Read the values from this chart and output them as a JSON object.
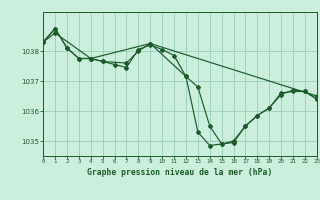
{
  "title": "Graphe pression niveau de la mer (hPa)",
  "bg_color": "#cceedd",
  "grid_color": "#99ccbb",
  "line_color": "#1a5c28",
  "xlim": [
    0,
    23
  ],
  "ylim": [
    1034.5,
    1039.3
  ],
  "yticks": [
    1035,
    1036,
    1037,
    1038
  ],
  "xticks": [
    0,
    1,
    2,
    3,
    4,
    5,
    6,
    7,
    8,
    9,
    10,
    11,
    12,
    13,
    14,
    15,
    16,
    17,
    18,
    19,
    20,
    21,
    22,
    23
  ],
  "series1_x": [
    0,
    1,
    2,
    3,
    4,
    5,
    6,
    7,
    8,
    9,
    10,
    11,
    12,
    13,
    14,
    15,
    16,
    17,
    18,
    19,
    20,
    21,
    22,
    23
  ],
  "series1_y": [
    1038.3,
    1038.75,
    1038.1,
    1037.75,
    1037.75,
    1037.65,
    1037.55,
    1037.45,
    1038.05,
    1038.2,
    1038.05,
    1037.85,
    1037.15,
    1035.3,
    1034.85,
    1034.9,
    1035.0,
    1035.5,
    1035.85,
    1036.1,
    1036.6,
    1036.65,
    1036.65,
    1036.4
  ],
  "series2_x": [
    0,
    1,
    2,
    3,
    4,
    5,
    7,
    8,
    9,
    23
  ],
  "series2_y": [
    1038.3,
    1038.75,
    1038.1,
    1037.75,
    1037.75,
    1037.65,
    1037.6,
    1038.0,
    1038.25,
    1036.5
  ],
  "series3_x": [
    0,
    1,
    4,
    9,
    12,
    13,
    14,
    15,
    16,
    17,
    18,
    19,
    20,
    21,
    22,
    23
  ],
  "series3_y": [
    1038.3,
    1038.6,
    1037.75,
    1038.25,
    1037.15,
    1036.8,
    1035.5,
    1034.9,
    1034.95,
    1035.5,
    1035.85,
    1036.1,
    1036.55,
    1036.7,
    1036.65,
    1036.4
  ]
}
